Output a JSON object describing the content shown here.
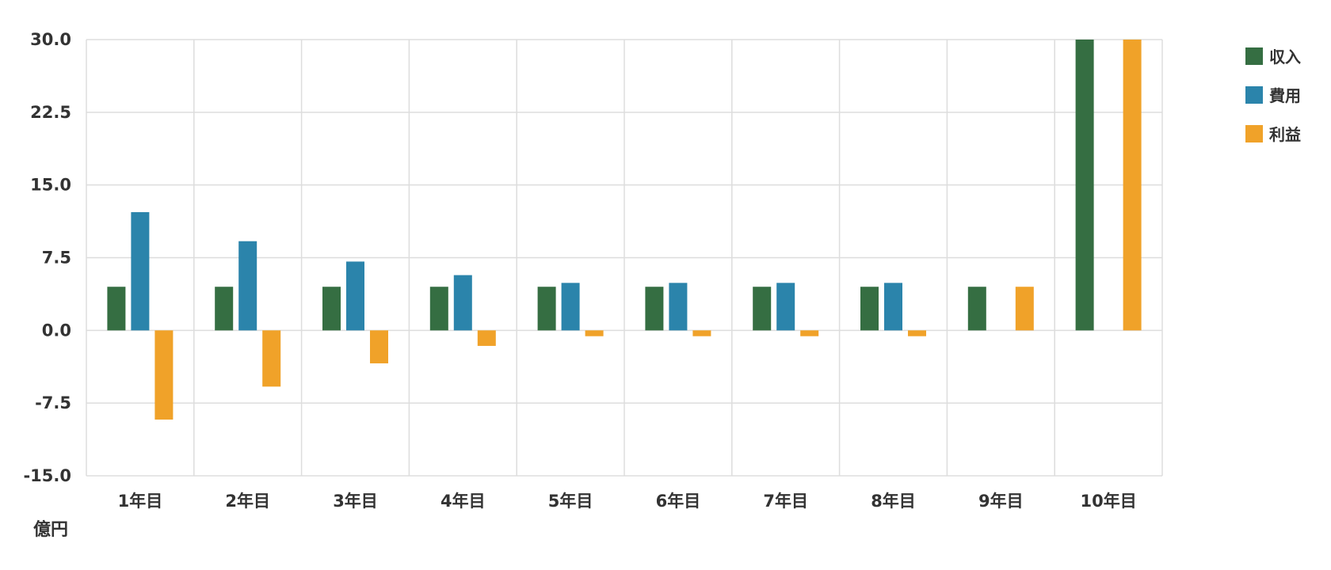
{
  "chart_data": {
    "type": "bar",
    "categories": [
      "1年目",
      "2年目",
      "3年目",
      "4年目",
      "5年目",
      "6年目",
      "7年目",
      "8年目",
      "9年目",
      "10年目"
    ],
    "series": [
      {
        "name": "収入",
        "color": "#356e42",
        "values": [
          4.5,
          4.5,
          4.5,
          4.5,
          4.5,
          4.5,
          4.5,
          4.5,
          4.5,
          30.0
        ]
      },
      {
        "name": "費用",
        "color": "#2b84ab",
        "values": [
          12.2,
          9.2,
          7.1,
          5.7,
          4.9,
          4.9,
          4.9,
          4.9,
          0,
          0
        ]
      },
      {
        "name": "利益",
        "color": "#f0a229",
        "values": [
          -9.2,
          -5.8,
          -3.4,
          -1.6,
          -0.6,
          -0.6,
          -0.6,
          -0.6,
          4.5,
          30.0
        ]
      }
    ],
    "y_ticks": [
      "30.0",
      "22.5",
      "15.0",
      "7.5",
      "0.0",
      "-7.5",
      "-15.0"
    ],
    "ylim": [
      -15,
      30
    ],
    "ylabel": "億円",
    "grid": true,
    "legend_position": "top-right"
  }
}
